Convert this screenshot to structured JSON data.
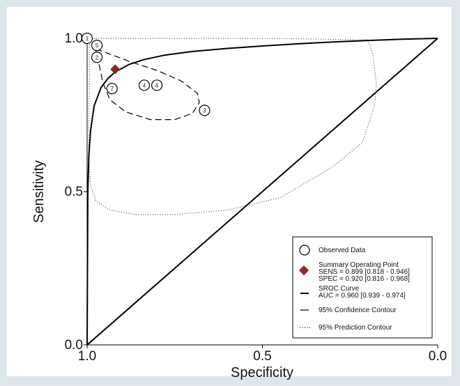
{
  "chart_data": {
    "type": "scatter",
    "title": "",
    "xlabel": "Specificity",
    "ylabel": "Sensitivity",
    "xlim": [
      1.0,
      0.0
    ],
    "ylim": [
      0.0,
      1.0
    ],
    "xticks": [
      "1.0",
      "0.5",
      "0.0"
    ],
    "yticks": [
      "0.0",
      "0.5",
      "1.0"
    ],
    "grid": false,
    "legend_position": "bottom-right",
    "colors": {
      "background": "#dde6ea",
      "plot_area": "#ffffff",
      "summary_point": "#8b2a2e",
      "lines": "#000000"
    },
    "observed_studies": [
      {
        "label": "1",
        "specificity": 1.0,
        "sensitivity": 1.0
      },
      {
        "label": "5",
        "specificity": 0.972,
        "sensitivity": 0.977
      },
      {
        "label": "2",
        "specificity": 0.972,
        "sensitivity": 0.938
      },
      {
        "label": "7",
        "specificity": 0.929,
        "sensitivity": 0.836
      },
      {
        "label": "4",
        "specificity": 0.837,
        "sensitivity": 0.847
      },
      {
        "label": "6",
        "specificity": 0.801,
        "sensitivity": 0.847
      },
      {
        "label": "3",
        "specificity": 0.665,
        "sensitivity": 0.765
      }
    ],
    "summary_point": {
      "sensitivity": 0.899,
      "specificity": 0.92
    },
    "sroc_curve": {
      "auc": 0.96,
      "points": [
        [
          1.0,
          0.0
        ],
        [
          0.998,
          0.5
        ],
        [
          0.995,
          0.62
        ],
        [
          0.99,
          0.7
        ],
        [
          0.98,
          0.78
        ],
        [
          0.96,
          0.84
        ],
        [
          0.94,
          0.87
        ],
        [
          0.92,
          0.89
        ],
        [
          0.88,
          0.915
        ],
        [
          0.84,
          0.93
        ],
        [
          0.78,
          0.945
        ],
        [
          0.7,
          0.957
        ],
        [
          0.6,
          0.967
        ],
        [
          0.5,
          0.975
        ],
        [
          0.4,
          0.982
        ],
        [
          0.3,
          0.988
        ],
        [
          0.2,
          0.993
        ],
        [
          0.1,
          0.997
        ],
        [
          0.0,
          1.0
        ]
      ]
    },
    "reference_line": [
      [
        1.0,
        0.0
      ],
      [
        0.0,
        1.0
      ]
    ],
    "confidence_contour": [
      [
        0.975,
        0.965
      ],
      [
        0.95,
        0.955
      ],
      [
        0.88,
        0.925
      ],
      [
        0.8,
        0.895
      ],
      [
        0.73,
        0.86
      ],
      [
        0.685,
        0.82
      ],
      [
        0.68,
        0.79
      ],
      [
        0.7,
        0.755
      ],
      [
        0.75,
        0.735
      ],
      [
        0.82,
        0.735
      ],
      [
        0.89,
        0.76
      ],
      [
        0.935,
        0.8
      ],
      [
        0.955,
        0.855
      ],
      [
        0.965,
        0.91
      ],
      [
        0.975,
        0.945
      ]
    ],
    "prediction_contour": [
      [
        0.995,
        1.0
      ],
      [
        0.5,
        1.0
      ],
      [
        0.2,
        0.995
      ],
      [
        0.185,
        0.95
      ],
      [
        0.175,
        0.85
      ],
      [
        0.18,
        0.78
      ],
      [
        0.215,
        0.66
      ],
      [
        0.3,
        0.58
      ],
      [
        0.45,
        0.48
      ],
      [
        0.6,
        0.44
      ],
      [
        0.75,
        0.425
      ],
      [
        0.86,
        0.425
      ],
      [
        0.935,
        0.44
      ],
      [
        0.975,
        0.47
      ],
      [
        0.99,
        0.52
      ],
      [
        0.995,
        0.6
      ],
      [
        0.995,
        0.75
      ],
      [
        0.993,
        0.9
      ]
    ],
    "legend": {
      "observed": "Observed Data",
      "summary_title": "Summary Operating Point",
      "summary_sens": "SENS = 0.899 [0.818 - 0.946]",
      "summary_spec": "SPEC = 0.920 [0.816 - 0.968]",
      "sroc_title": "SROC Curve",
      "sroc_auc": "AUC = 0.960 [0.939 - 0.974]",
      "confidence": "95% Confidence Contour",
      "prediction": "95% Prediction Contour"
    }
  }
}
